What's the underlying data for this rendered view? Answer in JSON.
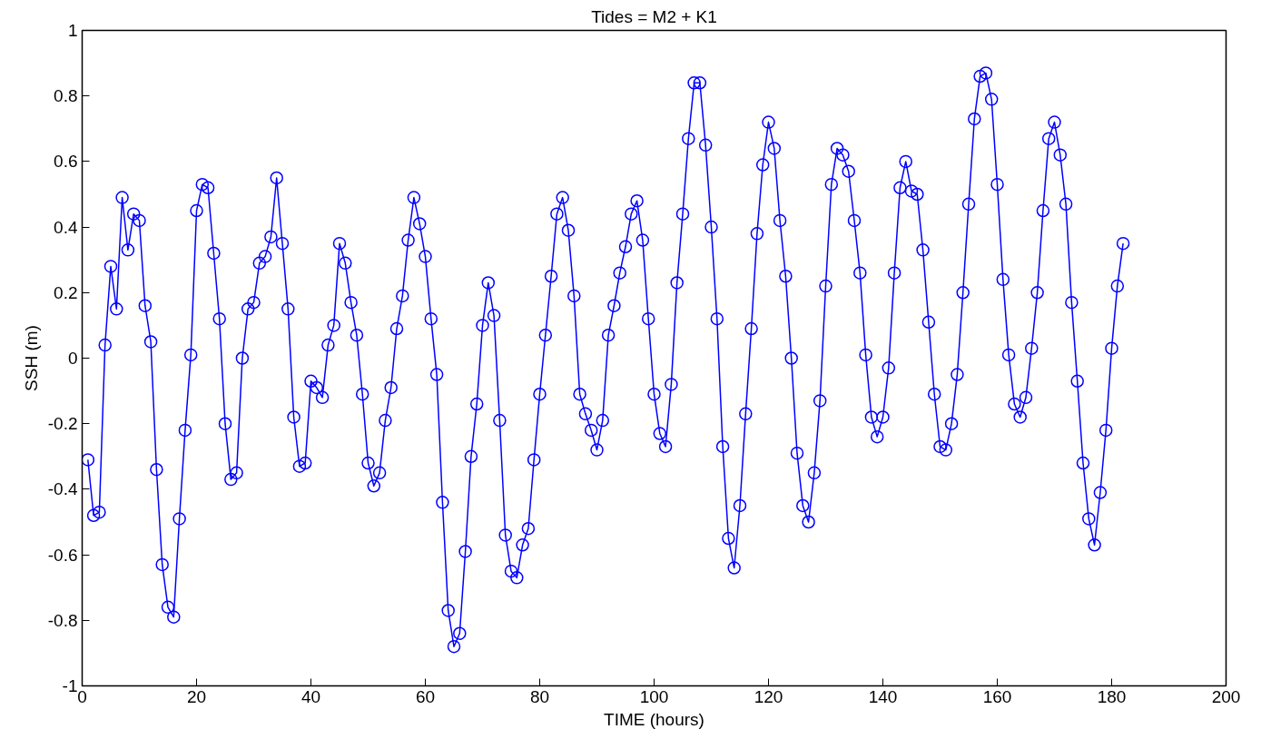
{
  "chart_data": {
    "type": "line",
    "title": "Tides = M2 + K1",
    "xlabel": "TIME (hours)",
    "ylabel": "SSH (m)",
    "x": [
      1,
      2,
      3,
      4,
      5,
      6,
      7,
      8,
      9,
      10,
      11,
      12,
      13,
      14,
      15,
      16,
      17,
      18,
      19,
      20,
      21,
      22,
      23,
      24,
      25,
      26,
      27,
      28,
      29,
      30,
      31,
      32,
      33,
      34,
      35,
      36,
      37,
      38,
      39,
      40,
      41,
      42,
      43,
      44,
      45,
      46,
      47,
      48,
      49,
      50,
      51,
      52,
      53,
      54,
      55,
      56,
      57,
      58,
      59,
      60,
      61,
      62,
      63,
      64,
      65,
      66,
      67,
      68,
      69,
      70,
      71,
      72,
      73,
      74,
      75,
      76,
      77,
      78,
      79,
      80,
      81,
      82,
      83,
      84,
      85,
      86,
      87,
      88,
      89,
      90,
      91,
      92,
      93,
      94,
      95,
      96,
      97,
      98,
      99,
      100,
      101,
      102,
      103,
      104,
      105,
      106,
      107,
      108,
      109,
      110,
      111,
      112,
      113,
      114,
      115,
      116,
      117,
      118,
      119,
      120,
      121,
      122,
      123,
      124,
      125,
      126,
      127,
      128,
      129,
      130,
      131,
      132,
      133,
      134,
      135,
      136,
      137,
      138,
      139,
      140,
      141,
      142,
      143,
      144,
      145,
      146,
      147,
      148,
      149,
      150,
      151,
      152,
      153,
      154,
      155,
      156,
      157,
      158,
      159,
      160,
      161,
      162,
      163,
      164,
      165,
      166,
      167,
      168,
      169,
      170,
      171,
      172,
      173,
      174,
      175,
      176,
      177,
      178,
      179,
      180,
      181,
      182
    ],
    "series": [
      {
        "color": "#0000ff",
        "values": [
          -0.31,
          -0.48,
          -0.47,
          0.04,
          0.28,
          0.15,
          0.49,
          0.33,
          0.44,
          0.42,
          0.16,
          0.05,
          -0.34,
          -0.63,
          -0.76,
          -0.79,
          -0.49,
          -0.22,
          0.01,
          0.45,
          0.53,
          0.52,
          0.32,
          0.12,
          -0.2,
          -0.37,
          -0.35,
          0.0,
          0.15,
          0.17,
          0.29,
          0.31,
          0.37,
          0.55,
          0.35,
          0.15,
          -0.18,
          -0.33,
          -0.32,
          -0.07,
          -0.09,
          -0.12,
          0.04,
          0.1,
          0.35,
          0.29,
          0.17,
          0.07,
          -0.11,
          -0.32,
          -0.39,
          -0.35,
          -0.19,
          -0.09,
          0.09,
          0.19,
          0.36,
          0.49,
          0.41,
          0.31,
          0.12,
          -0.05,
          -0.44,
          -0.77,
          -0.88,
          -0.84,
          -0.59,
          -0.3,
          -0.14,
          0.1,
          0.23,
          0.13,
          -0.19,
          -0.54,
          -0.65,
          -0.67,
          -0.57,
          -0.52,
          -0.31,
          -0.11,
          0.07,
          0.25,
          0.44,
          0.49,
          0.39,
          0.19,
          -0.11,
          -0.17,
          -0.22,
          -0.28,
          -0.19,
          0.07,
          0.16,
          0.26,
          0.34,
          0.44,
          0.48,
          0.36,
          0.12,
          -0.11,
          -0.23,
          -0.27,
          -0.08,
          0.23,
          0.44,
          0.67,
          0.84,
          0.84,
          0.65,
          0.4,
          0.12,
          -0.27,
          -0.55,
          -0.64,
          -0.45,
          -0.17,
          0.09,
          0.38,
          0.59,
          0.72,
          0.64,
          0.42,
          0.25,
          0.0,
          -0.29,
          -0.45,
          -0.5,
          -0.35,
          -0.13,
          0.22,
          0.53,
          0.64,
          0.62,
          0.57,
          0.42,
          0.26,
          0.01,
          -0.18,
          -0.24,
          -0.18,
          -0.03,
          0.26,
          0.52,
          0.6,
          0.51,
          0.5,
          0.33,
          0.11,
          -0.11,
          -0.27,
          -0.28,
          -0.2,
          -0.05,
          0.2,
          0.47,
          0.73,
          0.86,
          0.87,
          0.79,
          0.53,
          0.24,
          0.01,
          -0.14,
          -0.18,
          -0.12,
          0.03,
          0.2,
          0.45,
          0.67,
          0.72,
          0.62,
          0.47,
          0.17,
          -0.07,
          -0.32,
          -0.49,
          -0.57,
          -0.41,
          -0.22,
          0.03,
          0.22,
          0.35
        ]
      }
    ],
    "xlim": [
      0,
      200
    ],
    "xticks": [
      0,
      20,
      40,
      60,
      80,
      100,
      120,
      140,
      160,
      180,
      200
    ],
    "ylim": [
      -1,
      1
    ],
    "yticks": [
      -1,
      -0.8,
      -0.6,
      -0.4,
      -0.2,
      0,
      0.2,
      0.4,
      0.6,
      0.8,
      1
    ],
    "marker": "circle",
    "line_style": "solid",
    "grid": false
  }
}
